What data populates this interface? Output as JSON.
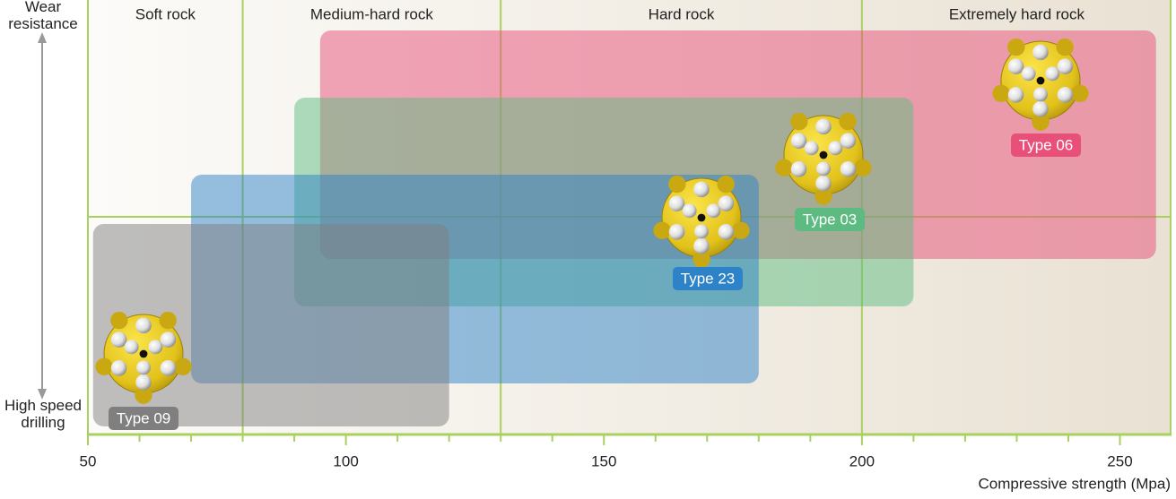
{
  "chart_data": {
    "type": "range",
    "y_top_label": "Wear resistance",
    "y_bottom_label": "High speed drilling",
    "x_label": "Compressive strength (Mpa)",
    "xlim": [
      50,
      260
    ],
    "xticks": [
      50,
      100,
      150,
      200,
      250
    ],
    "xminorticks": [
      60,
      70,
      80,
      90,
      110,
      120,
      130,
      140,
      160,
      170,
      180,
      190,
      210,
      220,
      230,
      240
    ],
    "zones": [
      {
        "name": "Soft rock",
        "range": [
          50,
          80
        ]
      },
      {
        "name": "Medium-hard rock",
        "range": [
          80,
          130
        ]
      },
      {
        "name": "Hard rock",
        "range": [
          130,
          200
        ]
      },
      {
        "name": "Extremely hard rock",
        "range": [
          200,
          260
        ]
      }
    ],
    "series": [
      {
        "name": "Type 06",
        "color": "#e8507a",
        "range": [
          95,
          257
        ]
      },
      {
        "name": "Type 03",
        "color": "#5dbb82",
        "range": [
          90,
          210
        ]
      },
      {
        "name": "Type 23",
        "color": "#2d82c8",
        "range": [
          70,
          180
        ]
      },
      {
        "name": "Type 09",
        "color": "#7f7f7f",
        "range": [
          51,
          120
        ]
      }
    ]
  }
}
